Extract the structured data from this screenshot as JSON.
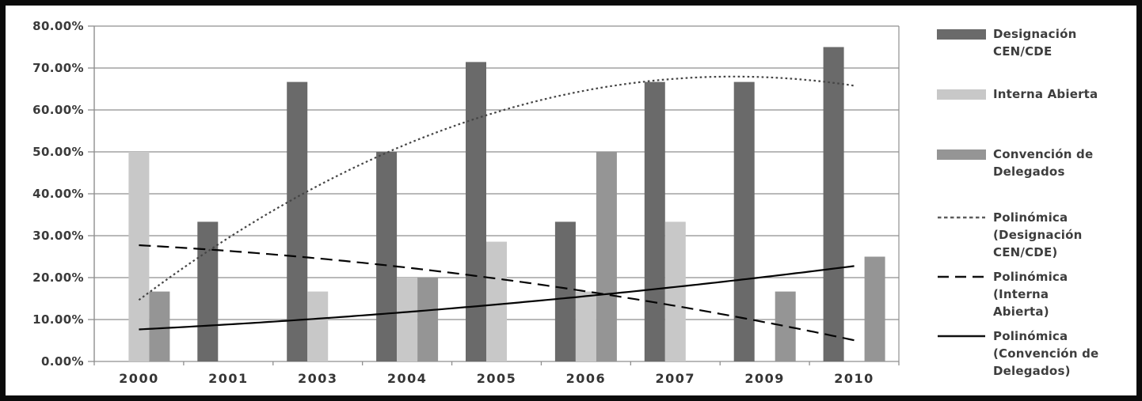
{
  "window": {
    "background": "#ffffff",
    "border_color": "#0b0b0b"
  },
  "chart_data": {
    "type": "bar",
    "title": "",
    "xlabel": "",
    "ylabel": "",
    "categories": [
      "2000",
      "2001",
      "2003",
      "2004",
      "2005",
      "2006",
      "2007",
      "2009",
      "2010"
    ],
    "series": [
      {
        "name": "Designación CEN/CDE",
        "color": "#6a6a6a",
        "values": [
          0,
          33.33,
          66.67,
          50,
          71.43,
          33.33,
          66.67,
          66.67,
          75
        ]
      },
      {
        "name": "Interna Abierta",
        "color": "#c8c8c8",
        "values": [
          50,
          0,
          16.67,
          20,
          28.57,
          16.67,
          33.33,
          0,
          0
        ]
      },
      {
        "name": "Convención de Delegados",
        "color": "#959595",
        "values": [
          16.67,
          0,
          0,
          20,
          0,
          50,
          0,
          16.67,
          25
        ]
      }
    ],
    "trendlines": [
      {
        "name": "Polinómica (Designación CEN/CDE)",
        "series_index": 0,
        "order": 2,
        "style": "dotted",
        "color": "#454545"
      },
      {
        "name": "Polinómica (Interna Abierta)",
        "series_index": 1,
        "order": 2,
        "style": "dashed",
        "color": "#050505"
      },
      {
        "name": "Polinómica (Convención de Delegados)",
        "series_index": 2,
        "order": 2,
        "style": "solid",
        "color": "#050505"
      }
    ],
    "y_axis": {
      "min": 0,
      "max": 80,
      "step": 10,
      "tick_labels": [
        "0.00%",
        "10.00%",
        "20.00%",
        "30.00%",
        "40.00%",
        "50.00%",
        "60.00%",
        "70.00%",
        "80.00%"
      ]
    },
    "grid": true,
    "grid_color": "#8f8f8f",
    "axis_color": "#8f8f8f",
    "axis_text_color": "#3a3a3a",
    "legend_position": "right"
  },
  "legend": {
    "items": [
      {
        "id": "designacion-cen-cde",
        "swatch": "bar",
        "color": "#6a6a6a",
        "lines": [
          "Designación",
          "CEN/CDE"
        ]
      },
      {
        "id": "interna-abierta",
        "swatch": "bar",
        "color": "#c8c8c8",
        "lines": [
          "Interna Abierta"
        ]
      },
      {
        "id": "convencion-de-delegados",
        "swatch": "bar",
        "color": "#959595",
        "lines": [
          "Convención de",
          "Delegados"
        ]
      },
      {
        "id": "polinomica-designacion-cen-cde",
        "swatch": "dotted-line",
        "color": "#5c5c5c",
        "lines": [
          "Polinómica",
          "(Designación",
          "CEN/CDE)"
        ]
      },
      {
        "id": "polinomica-interna-abierta",
        "swatch": "dashed-line",
        "color": "#101010",
        "lines": [
          "Polinómica",
          "(Interna",
          "Abierta)"
        ]
      },
      {
        "id": "polinomica-convencion-de-delegados",
        "swatch": "solid-line",
        "color": "#101010",
        "lines": [
          "Polinómica",
          "(Convención de",
          "Delegados)"
        ]
      }
    ]
  }
}
